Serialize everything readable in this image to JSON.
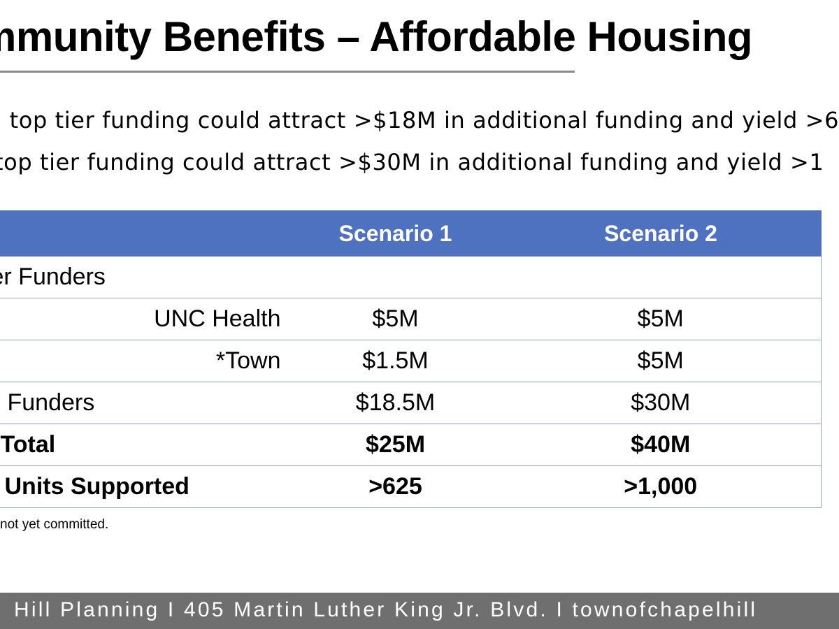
{
  "slide": {
    "title": "mmunity Benefits – Affordable Housing",
    "bullets": [
      "n top tier funding could attract >$18M in additional funding and yield >6",
      "top tier funding could attract >$30M in additional funding and yield >1"
    ],
    "table": {
      "headers": [
        "",
        "Scenario 1",
        "Scenario 2"
      ],
      "rows": [
        {
          "label": "er Funders",
          "s1": "",
          "s2": ""
        },
        {
          "label": "UNC Health",
          "s1": "$5M",
          "s2": "$5M"
        },
        {
          "label": "*Town",
          "s1": "$1.5M",
          "s2": "$5M"
        },
        {
          "label": "Funders",
          "s1": "$18.5M",
          "s2": "$30M"
        },
        {
          "label": "Total",
          "s1": "$25M",
          "s2": "$40M"
        },
        {
          "label": "Units Supported",
          "s1": ">625",
          "s2": ">1,000"
        }
      ]
    },
    "footnote": "not yet committed.",
    "footer": "Hill Planning I 405 Martin Luther King Jr. Blvd. I townofchapelhill"
  },
  "colors": {
    "header_fill": "#4f72c0",
    "table_border": "#8ea2d4",
    "footer_bar": "#6f6f6f",
    "title_rule": "#8a8a8a"
  }
}
